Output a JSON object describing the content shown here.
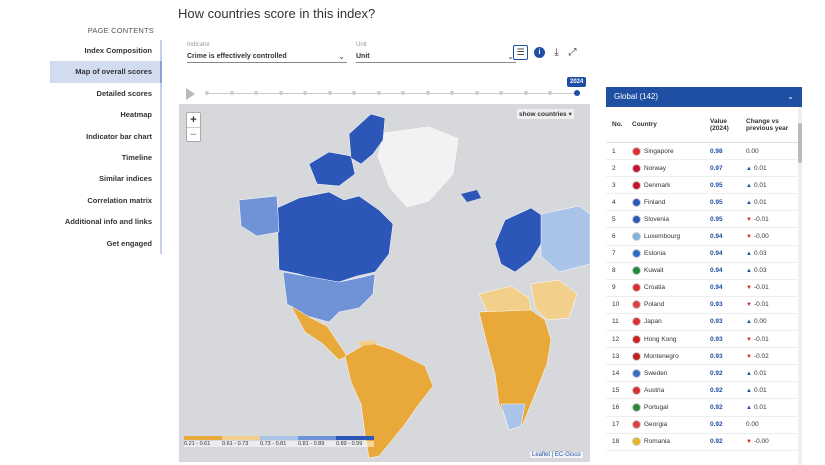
{
  "heading": "How countries score in this index?",
  "sidebar": {
    "title": "PAGE CONTENTS",
    "items": [
      {
        "label": "Index Composition"
      },
      {
        "label": "Map of overall scores"
      },
      {
        "label": "Detailed scores"
      },
      {
        "label": "Heatmap"
      },
      {
        "label": "Indicator bar chart"
      },
      {
        "label": "Timeline"
      },
      {
        "label": "Similar indices"
      },
      {
        "label": "Correlation matrix"
      },
      {
        "label": "Additional info and links"
      },
      {
        "label": "Get engaged"
      }
    ],
    "active_index": 1
  },
  "controls": {
    "indicator_label": "Indicator",
    "indicator_value": "Crime is effectively controlled",
    "unit_label": "Unit",
    "unit_value": "Unit"
  },
  "timeline": {
    "year": "2024"
  },
  "map": {
    "show_countries": "show countries",
    "zoom_in": "+",
    "zoom_out": "−",
    "legend": [
      {
        "label": "0.21 - 0.61",
        "color": "#e8a93a"
      },
      {
        "label": "0.61 - 0.73",
        "color": "#f2cf8b"
      },
      {
        "label": "0.73 - 0.81",
        "color": "#a9c3e9"
      },
      {
        "label": "0.81 - 0.89",
        "color": "#6f93d6"
      },
      {
        "label": "0.89 - 0.99",
        "color": "#2c56b8"
      }
    ],
    "attribution": "Leaflet | EC-Gisco"
  },
  "table": {
    "region": "Global (142)",
    "headers": {
      "no": "No.",
      "country": "Country",
      "value": "Value (2024)",
      "change": "Change vs previous year"
    },
    "rows": [
      {
        "no": "1",
        "country": "Singapore",
        "value": "0.98",
        "change": "0.00",
        "dir": "none",
        "flag": "#e03030"
      },
      {
        "no": "2",
        "country": "Norway",
        "value": "0.97",
        "change": "0.01",
        "dir": "up",
        "flag": "#c8102e"
      },
      {
        "no": "3",
        "country": "Denmark",
        "value": "0.95",
        "change": "0.01",
        "dir": "up",
        "flag": "#c8102e"
      },
      {
        "no": "4",
        "country": "Finland",
        "value": "0.95",
        "change": "0.01",
        "dir": "up",
        "flag": "#2b5bb8"
      },
      {
        "no": "5",
        "country": "Slovenia",
        "value": "0.95",
        "change": "-0.01",
        "dir": "down",
        "flag": "#2b5bb8"
      },
      {
        "no": "6",
        "country": "Luxembourg",
        "value": "0.94",
        "change": "-0.00",
        "dir": "down",
        "flag": "#7fb3e0"
      },
      {
        "no": "7",
        "country": "Estonia",
        "value": "0.94",
        "change": "0.03",
        "dir": "up",
        "flag": "#2b6cc4"
      },
      {
        "no": "8",
        "country": "Kuwait",
        "value": "0.94",
        "change": "0.03",
        "dir": "up",
        "flag": "#1f8a3a"
      },
      {
        "no": "9",
        "country": "Croatia",
        "value": "0.94",
        "change": "-0.01",
        "dir": "down",
        "flag": "#d83030"
      },
      {
        "no": "10",
        "country": "Poland",
        "value": "0.93",
        "change": "-0.01",
        "dir": "down",
        "flag": "#e04040"
      },
      {
        "no": "11",
        "country": "Japan",
        "value": "0.93",
        "change": "0.00",
        "dir": "up",
        "flag": "#e03030"
      },
      {
        "no": "12",
        "country": "Hong Kong",
        "value": "0.93",
        "change": "-0.01",
        "dir": "down",
        "flag": "#d02020"
      },
      {
        "no": "13",
        "country": "Montenegro",
        "value": "0.93",
        "change": "-0.02",
        "dir": "down",
        "flag": "#c02020"
      },
      {
        "no": "14",
        "country": "Sweden",
        "value": "0.92",
        "change": "0.01",
        "dir": "up",
        "flag": "#3a6fc4"
      },
      {
        "no": "15",
        "country": "Austria",
        "value": "0.92",
        "change": "0.01",
        "dir": "up",
        "flag": "#d83030"
      },
      {
        "no": "16",
        "country": "Portugal",
        "value": "0.92",
        "change": "0.01",
        "dir": "up",
        "flag": "#2a8a3a"
      },
      {
        "no": "17",
        "country": "Georgia",
        "value": "0.92",
        "change": "0.00",
        "dir": "none",
        "flag": "#e04040"
      },
      {
        "no": "18",
        "country": "Romania",
        "value": "0.92",
        "change": "-0.00",
        "dir": "down",
        "flag": "#e6b520"
      }
    ]
  }
}
